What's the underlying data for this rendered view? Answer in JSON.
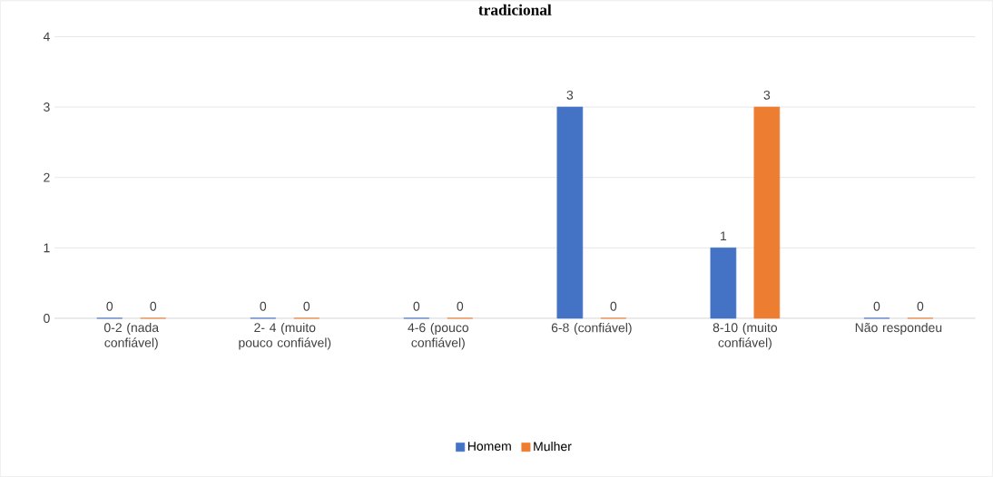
{
  "chart_data": {
    "type": "bar",
    "title": "tradicional",
    "categories": [
      "0-2 (nada confiável)",
      "2- 4 (muito pouco confiável)",
      "4-6 (pouco confiável)",
      "6-8 (confiável)",
      "8-10 (muito confiável)",
      "Não respondeu"
    ],
    "series": [
      {
        "name": "Homem",
        "color": "#4472c4",
        "values": [
          0,
          0,
          0,
          3,
          1,
          0
        ]
      },
      {
        "name": "Mulher",
        "color": "#ed7d31",
        "values": [
          0,
          0,
          0,
          0,
          3,
          0
        ]
      }
    ],
    "ylim": [
      0,
      4
    ],
    "yticks": [
      0,
      1,
      2,
      3,
      4
    ],
    "grid": "y",
    "legend": "bottom",
    "data_labels": true
  }
}
